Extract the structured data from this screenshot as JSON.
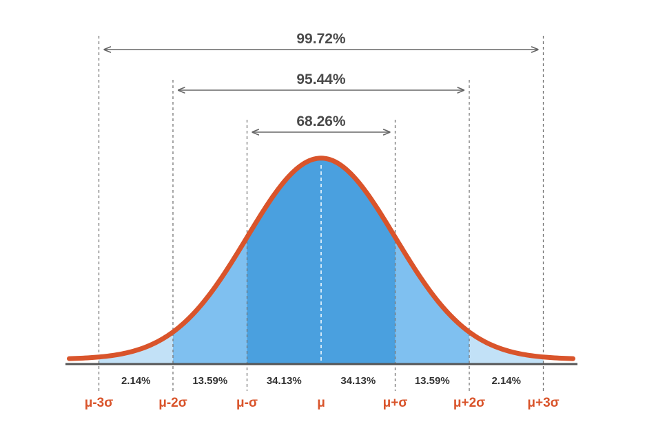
{
  "chart_data": {
    "type": "area",
    "title": "",
    "xlabel": "",
    "ylabel": "",
    "xlim": [
      -3.4,
      3.4
    ],
    "ylim": [
      0,
      0.4
    ],
    "distribution": "normal",
    "mean": 0,
    "std": 1,
    "grid": false,
    "ticks": [
      {
        "x": -3,
        "label": "μ-3σ"
      },
      {
        "x": -2,
        "label": "μ-2σ"
      },
      {
        "x": -1,
        "label": "μ-σ"
      },
      {
        "x": 0,
        "label": "μ"
      },
      {
        "x": 1,
        "label": "μ+σ"
      },
      {
        "x": 2,
        "label": "μ+2σ"
      },
      {
        "x": 3,
        "label": "μ+3σ"
      }
    ],
    "segments": [
      {
        "from": -3,
        "to": -2,
        "label": "2.14%"
      },
      {
        "from": -2,
        "to": -1,
        "label": "13.59%"
      },
      {
        "from": -1,
        "to": 0,
        "label": "34.13%"
      },
      {
        "from": 0,
        "to": 1,
        "label": "34.13%"
      },
      {
        "from": 1,
        "to": 2,
        "label": "13.59%"
      },
      {
        "from": 2,
        "to": 3,
        "label": "2.14%"
      }
    ],
    "intervals": [
      {
        "from": -3,
        "to": 3,
        "label": "99.72%"
      },
      {
        "from": -2,
        "to": 2,
        "label": "95.44%"
      },
      {
        "from": -1,
        "to": 1,
        "label": "68.26%"
      }
    ],
    "colors": {
      "curve": "#d9542b",
      "center": "#4aa0df",
      "middle": "#7fc0f0",
      "tail": "#c2e1f7",
      "baseline": "#555555",
      "guides": "#777777",
      "arrows": "#666666",
      "tick_text": "#d9542b",
      "pct_text": "#4a4a4a"
    }
  }
}
